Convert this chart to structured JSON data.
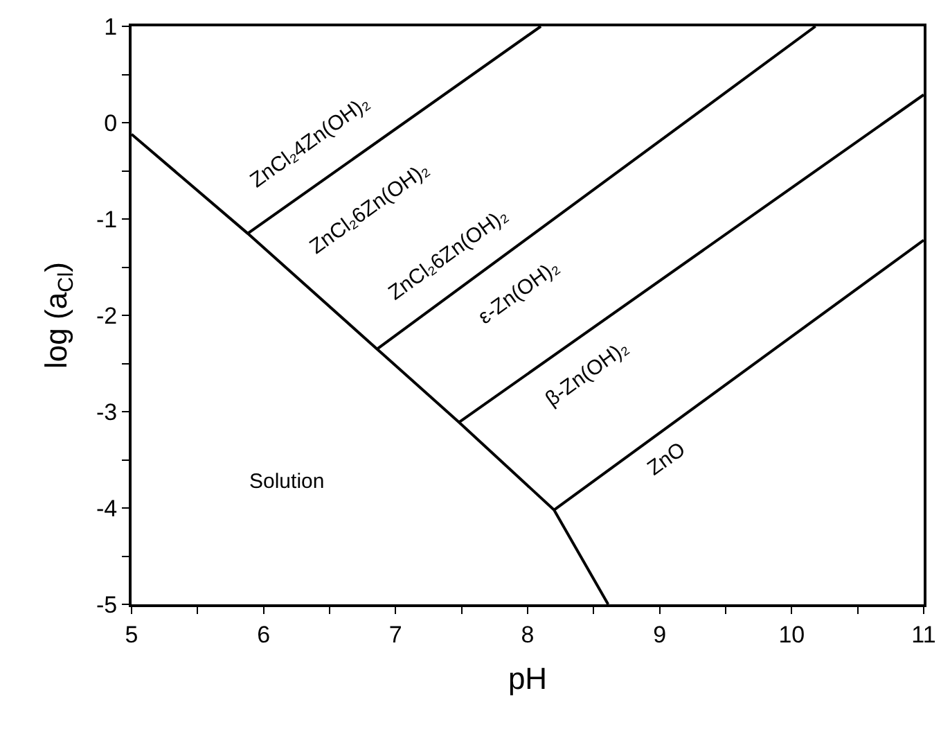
{
  "chart_data": {
    "type": "line",
    "xlabel": "pH",
    "ylabel": "log (a$_{Cl}$)",
    "xlim": [
      5,
      11
    ],
    "ylim": [
      -5,
      1
    ],
    "xticks": [
      5,
      {
        "value": 5.5,
        "label": null
      },
      6,
      {
        "value": 6.5,
        "label": null
      },
      7,
      {
        "value": 7.5,
        "label": null
      },
      8,
      {
        "value": 8.5,
        "label": null
      },
      9,
      {
        "value": 9.5,
        "label": null
      },
      10,
      {
        "value": 10.5,
        "label": null
      },
      11
    ],
    "yticks": [
      -5,
      {
        "value": -4.5,
        "label": null
      },
      -4,
      {
        "value": -3.5,
        "label": null
      },
      -3,
      {
        "value": -2.5,
        "label": null
      },
      -2,
      {
        "value": -1.5,
        "label": null
      },
      -1,
      {
        "value": -0.5,
        "label": null
      },
      0,
      {
        "value": 0.5,
        "label": null
      },
      1
    ],
    "marker": "none",
    "line_style": "solid",
    "series": [
      {
        "color": "#000000",
        "x": [
          5,
          5.88,
          6.86,
          7.48,
          8.2,
          8.61
        ],
        "values": [
          -0.12,
          -1.15,
          -2.35,
          -3.11,
          -4.02,
          -5
        ]
      },
      {
        "color": "#000000",
        "x": [
          5.88,
          8.1
        ],
        "values": [
          -1.15,
          1
        ]
      },
      {
        "color": "#000000",
        "x": [
          6.86,
          10.18
        ],
        "values": [
          -2.35,
          1
        ]
      },
      {
        "color": "#000000",
        "x": [
          7.48,
          11
        ],
        "values": [
          -3.11,
          0.29
        ]
      },
      {
        "color": "#000000",
        "x": [
          8.2,
          11
        ],
        "values": [
          -4.02,
          -1.22
        ]
      }
    ],
    "annotations": [
      "ZnCl₂4Zn(OH)₂",
      "ZnCl₂6Zn(OH)₂",
      "ZnCl₂6Zn(OH)₂",
      "ε-Zn(OH)₂",
      "β-Zn(OH)₂",
      "ZnO",
      "Solution"
    ]
  }
}
